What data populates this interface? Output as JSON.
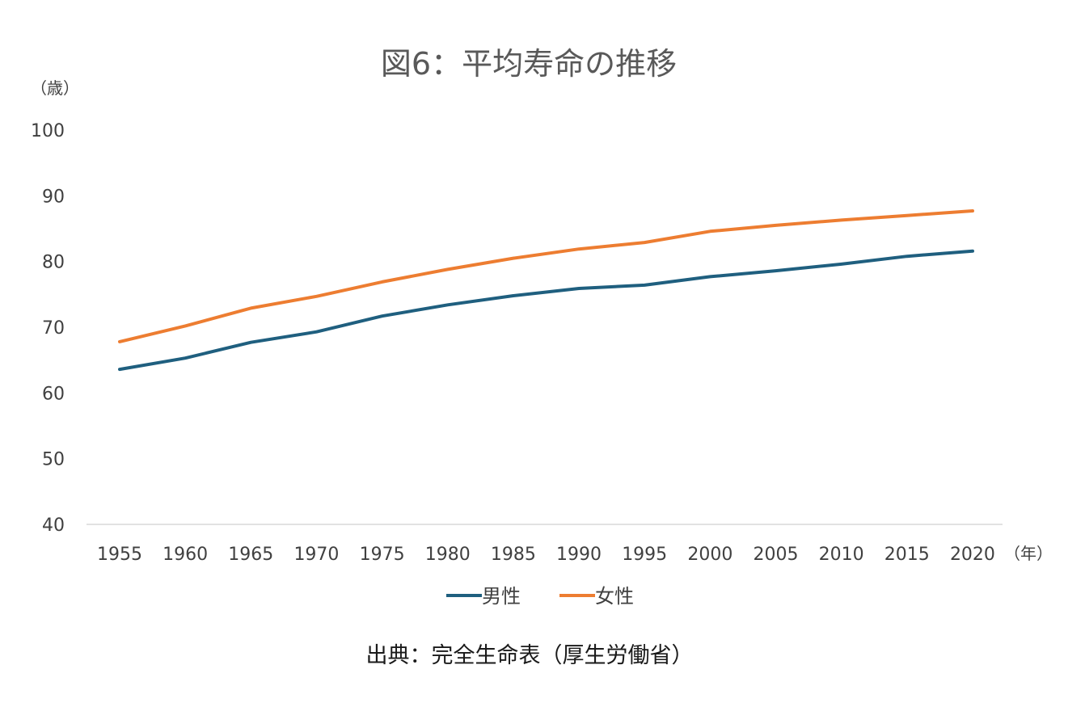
{
  "chart_data": {
    "type": "line",
    "title": "図6：平均寿命の推移",
    "y_unit_label": "（歳）",
    "x_unit_label": "（年）",
    "categories": [
      "1955",
      "1960",
      "1965",
      "1970",
      "1975",
      "1980",
      "1985",
      "1990",
      "1995",
      "2000",
      "2005",
      "2010",
      "2015",
      "2020"
    ],
    "ylim": [
      40,
      100
    ],
    "yticks": [
      "40",
      "50",
      "60",
      "70",
      "80",
      "90",
      "100"
    ],
    "grid": false,
    "legend_position": "bottom",
    "series": [
      {
        "name": "男性",
        "color": "#1f5f7f",
        "values": [
          63.6,
          65.3,
          67.7,
          69.3,
          71.7,
          73.4,
          74.8,
          75.9,
          76.4,
          77.7,
          78.6,
          79.6,
          80.8,
          81.6
        ]
      },
      {
        "name": "女性",
        "color": "#ed7d31",
        "values": [
          67.8,
          70.2,
          72.9,
          74.7,
          76.9,
          78.8,
          80.5,
          81.9,
          82.9,
          84.6,
          85.5,
          86.3,
          87.0,
          87.7
        ]
      }
    ]
  },
  "source_note": "出典：完全生命表（厚生労働省）"
}
